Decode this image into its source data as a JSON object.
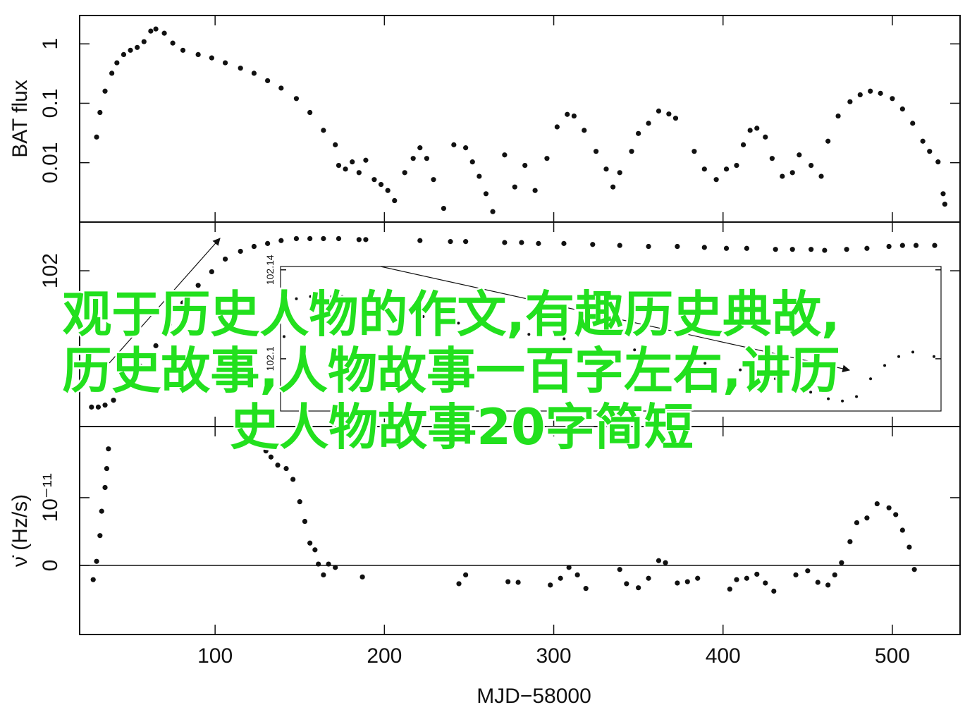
{
  "chart_data": [
    {
      "type": "scatter",
      "ylabel": "BAT flux",
      "log_y": true,
      "color": "#111",
      "xlim": [
        20,
        540
      ],
      "ylim": [
        0.001,
        3
      ],
      "yticks": [
        0.01,
        0.1,
        1
      ],
      "x": [
        30,
        32,
        35,
        39,
        42,
        46,
        50,
        54,
        58,
        62,
        65,
        70,
        75,
        81,
        90,
        98,
        106,
        115,
        123,
        131,
        139,
        148,
        156,
        164,
        171,
        173,
        177,
        181,
        185,
        189,
        194,
        198,
        202,
        206,
        212,
        217,
        221,
        225,
        229,
        235,
        241,
        248,
        252,
        256,
        260,
        264,
        271,
        277,
        283,
        289,
        296,
        302,
        308,
        312,
        318,
        325,
        331,
        335,
        339,
        346,
        350,
        356,
        362,
        368,
        372,
        383,
        389,
        396,
        402,
        408,
        412,
        416,
        420,
        425,
        429,
        435,
        441,
        445,
        452,
        458,
        462,
        468,
        475,
        481,
        487,
        493,
        500,
        506,
        512,
        518,
        522,
        527,
        530,
        531
      ],
      "y": [
        0.027,
        0.07,
        0.16,
        0.32,
        0.48,
        0.66,
        0.78,
        0.87,
        1.09,
        1.64,
        1.78,
        1.51,
        1.03,
        0.78,
        0.66,
        0.58,
        0.48,
        0.39,
        0.32,
        0.24,
        0.18,
        0.12,
        0.07,
        0.035,
        0.02,
        0.009,
        0.0078,
        0.0103,
        0.0068,
        0.011,
        0.0052,
        0.0043,
        0.0034,
        0.0023,
        0.0068,
        0.0118,
        0.0178,
        0.0118,
        0.0052,
        0.0017,
        0.02,
        0.0178,
        0.0103,
        0.0059,
        0.003,
        0.0015,
        0.0135,
        0.0039,
        0.009,
        0.0034,
        0.0118,
        0.04,
        0.065,
        0.061,
        0.035,
        0.0155,
        0.0078,
        0.0039,
        0.0068,
        0.0155,
        0.031,
        0.046,
        0.074,
        0.066,
        0.056,
        0.0155,
        0.0078,
        0.0052,
        0.0078,
        0.009,
        0.02,
        0.035,
        0.038,
        0.027,
        0.0118,
        0.0059,
        0.0068,
        0.0135,
        0.009,
        0.0059,
        0.023,
        0.061,
        0.106,
        0.139,
        0.16,
        0.147,
        0.12,
        0.08,
        0.046,
        0.023,
        0.0155,
        0.0103,
        0.003,
        0.002
      ]
    },
    {
      "type": "scatter",
      "color": "#111",
      "xlim": [
        20,
        540
      ],
      "ylim": [
        101.84,
        102.05
      ],
      "yticks": [
        102
      ],
      "x": [
        27,
        31,
        35,
        40,
        48,
        56,
        65,
        73,
        81,
        90,
        98,
        106,
        115,
        123,
        131,
        139,
        148,
        156,
        164,
        173,
        185,
        189,
        221,
        239,
        248,
        271,
        281,
        291,
        306,
        323,
        339,
        356,
        373,
        389,
        402,
        414,
        431,
        441,
        452,
        460,
        473,
        485,
        498,
        506,
        514,
        525
      ],
      "y": [
        101.86,
        101.86,
        101.862,
        101.867,
        101.883,
        101.902,
        101.923,
        101.945,
        101.967,
        101.985,
        101.999,
        102.012,
        102.02,
        102.025,
        102.028,
        102.031,
        102.033,
        102.033,
        102.033,
        102.033,
        102.032,
        102.032,
        102.031,
        102.03,
        102.03,
        102.029,
        102.029,
        102.028,
        102.028,
        102.027,
        102.026,
        102.025,
        102.025,
        102.024,
        102.023,
        102.023,
        102.022,
        102.022,
        102.022,
        102.021,
        102.022,
        102.023,
        102.025,
        102.026,
        102.026,
        102.026
      ]
    },
    {
      "type": "scatter",
      "ylabel": "ν̇ (Hz/s)",
      "xlabel": "MJD−58000",
      "zero_line": true,
      "color": "#111",
      "xlim": [
        20,
        540
      ],
      "ylim": [
        -1.02e-11,
        2.05e-11
      ],
      "xticks": [
        100,
        200,
        300,
        400,
        500
      ],
      "yticks": [
        0,
        {
          "value": 1e-11,
          "label": "10⁻¹¹"
        }
      ],
      "x": [
        28,
        30,
        32,
        33,
        35,
        36,
        37,
        130,
        133,
        137,
        142,
        146,
        150,
        153,
        156,
        159,
        161,
        164,
        167,
        171,
        187,
        244,
        248,
        273,
        279,
        298,
        304,
        309,
        314,
        319,
        339,
        343,
        350,
        356,
        362,
        366,
        373,
        379,
        385,
        404,
        408,
        414,
        420,
        425,
        430,
        443,
        450,
        456,
        462,
        466,
        470,
        475,
        479,
        485,
        491,
        498,
        502,
        506,
        510,
        513
      ],
      "y": [
        -2.1e-12,
        6e-13,
        4.4e-12,
        8e-12,
        1.15e-11,
        1.43e-11,
        1.72e-11,
        1.69e-11,
        1.6e-11,
        1.48e-11,
        1.43e-11,
        1.27e-11,
        9.4e-12,
        6.5e-12,
        3.3e-12,
        2.3e-12,
        2e-13,
        -1.4e-12,
        2e-13,
        -3e-13,
        -1.7e-12,
        -2.7e-12,
        -1.4e-12,
        -2.4e-12,
        -2.5e-12,
        -2.9e-12,
        -1.9e-12,
        -3e-13,
        -1.4e-12,
        -3.4e-12,
        -6e-13,
        -2.7e-12,
        -3.3e-12,
        -1.9e-12,
        7e-13,
        4e-13,
        -2.6e-12,
        -2.4e-12,
        -1.9e-12,
        -3.5e-12,
        -2.1e-12,
        -1.9e-12,
        -1.3e-12,
        -2.6e-12,
        -3.8e-12,
        -1.4e-12,
        -8e-13,
        -2.5e-12,
        -2.9e-12,
        -1.4e-12,
        4e-13,
        3.5e-12,
        6.3e-12,
        7e-12,
        9.1e-12,
        8.5e-12,
        7.5e-12,
        5.2e-12,
        2.7e-12,
        -6e-13
      ]
    },
    {
      "type": "scatter",
      "inset": true,
      "color": "#111",
      "xlim": [
        125,
        500
      ],
      "ylim": [
        102.0765,
        102.1415
      ],
      "yticks": [
        102.1,
        102.14
      ],
      "x": [
        127,
        130,
        134,
        142,
        154,
        160,
        166,
        186,
        206,
        226,
        246,
        266,
        286,
        306,
        326,
        346,
        366,
        386,
        406,
        426,
        436,
        444,
        452,
        460,
        468,
        476,
        484,
        496
      ],
      "y": [
        102.11,
        102.119,
        102.127,
        102.128,
        102.128,
        102.128,
        102.125,
        102.122,
        102.119,
        102.116,
        102.113,
        102.111,
        102.109,
        102.106,
        102.104,
        102.101,
        102.098,
        102.095,
        102.091,
        102.085,
        102.082,
        102.081,
        102.083,
        102.091,
        102.097,
        102.101,
        102.103,
        102.101
      ]
    }
  ],
  "overlay_text": [
    "观于历史人物的作文,有趣历史典故,",
    "历史故事,人物故事一百字左右,讲历",
    "史人物故事20字简短"
  ]
}
